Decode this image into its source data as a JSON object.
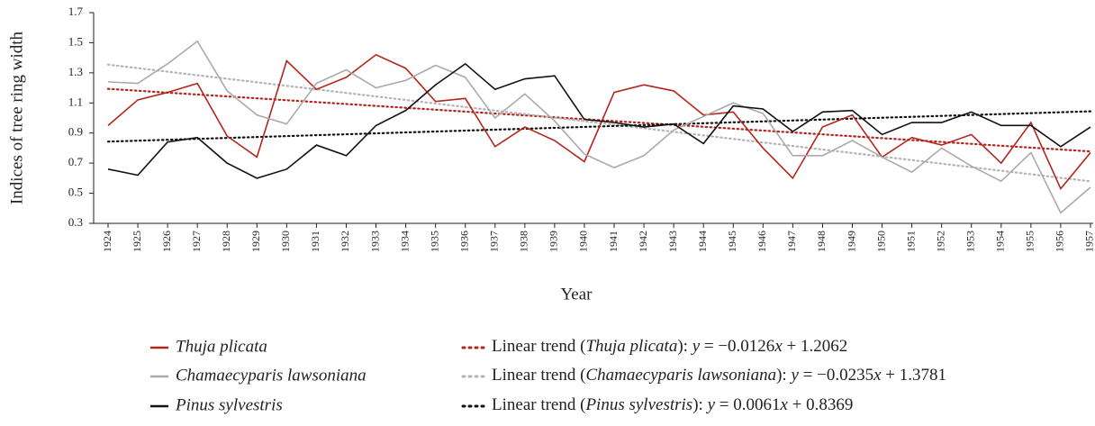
{
  "chart_data": {
    "type": "line",
    "y_label": "Indices of tree ring width",
    "x_label": "Year",
    "categories": [
      "1924",
      "1925",
      "1926",
      "1927",
      "1928",
      "1929",
      "1930",
      "1931",
      "1932",
      "1933",
      "1934",
      "1935",
      "1936",
      "1937",
      "1938",
      "1939",
      "1940",
      "1941",
      "1942",
      "1943",
      "1944",
      "1945",
      "1946",
      "1947",
      "1948",
      "1949",
      "1950",
      "1951",
      "1952",
      "1953",
      "1954",
      "1955",
      "1956",
      "1957"
    ],
    "ylim": [
      0.3,
      1.7
    ],
    "yticks": [
      0.3,
      0.5,
      0.7,
      0.9,
      1.1,
      1.3,
      1.5,
      1.7
    ],
    "series": [
      {
        "name": "Thuja plicata",
        "color": "#b3261e",
        "values": [
          0.95,
          1.12,
          1.17,
          1.23,
          0.88,
          0.74,
          1.38,
          1.19,
          1.27,
          1.42,
          1.33,
          1.11,
          1.13,
          0.81,
          0.94,
          0.85,
          0.71,
          1.17,
          1.22,
          1.18,
          1.02,
          1.04,
          0.8,
          0.6,
          0.94,
          1.02,
          0.74,
          0.87,
          0.82,
          0.89,
          0.7,
          0.97,
          0.53,
          0.77
        ]
      },
      {
        "name": "Chamaecyparis lawsoniana",
        "color": "#aaaaaa",
        "values": [
          1.24,
          1.23,
          1.36,
          1.51,
          1.18,
          1.02,
          0.96,
          1.23,
          1.32,
          1.2,
          1.25,
          1.35,
          1.27,
          1.0,
          1.16,
          0.98,
          0.76,
          0.67,
          0.75,
          0.92,
          1.01,
          1.1,
          1.03,
          0.75,
          0.75,
          0.85,
          0.74,
          0.64,
          0.8,
          0.68,
          0.58,
          0.77,
          0.37,
          0.54
        ]
      },
      {
        "name": "Pinus sylvestris",
        "color": "#111111",
        "values": [
          0.66,
          0.62,
          0.84,
          0.87,
          0.7,
          0.6,
          0.66,
          0.82,
          0.75,
          0.95,
          1.05,
          1.22,
          1.36,
          1.19,
          1.26,
          1.28,
          0.99,
          0.97,
          0.94,
          0.96,
          0.83,
          1.08,
          1.06,
          0.91,
          1.04,
          1.05,
          0.89,
          0.97,
          0.97,
          1.04,
          0.95,
          0.95,
          0.81,
          0.94
        ]
      }
    ],
    "trendlines": [
      {
        "color": "#b3261e",
        "slope": -0.0126,
        "intercept": 1.2062,
        "label": [
          "Linear trend (",
          "Thuja plicata",
          "): ",
          "y",
          " = −0.0126",
          "x",
          " + 1.2062"
        ]
      },
      {
        "color": "#b5b5b5",
        "slope": -0.0235,
        "intercept": 1.3781,
        "label": [
          "Linear trend (",
          "Chamaecyparis lawsoniana",
          "): ",
          "y",
          " = −0.0235",
          "x",
          " + 1.3781"
        ]
      },
      {
        "color": "#111111",
        "slope": 0.0061,
        "intercept": 0.8369,
        "label": [
          "Linear trend (",
          "Pinus sylvestris",
          "): ",
          "y",
          " = 0.0061",
          "x",
          " + 0.8369"
        ]
      }
    ]
  }
}
